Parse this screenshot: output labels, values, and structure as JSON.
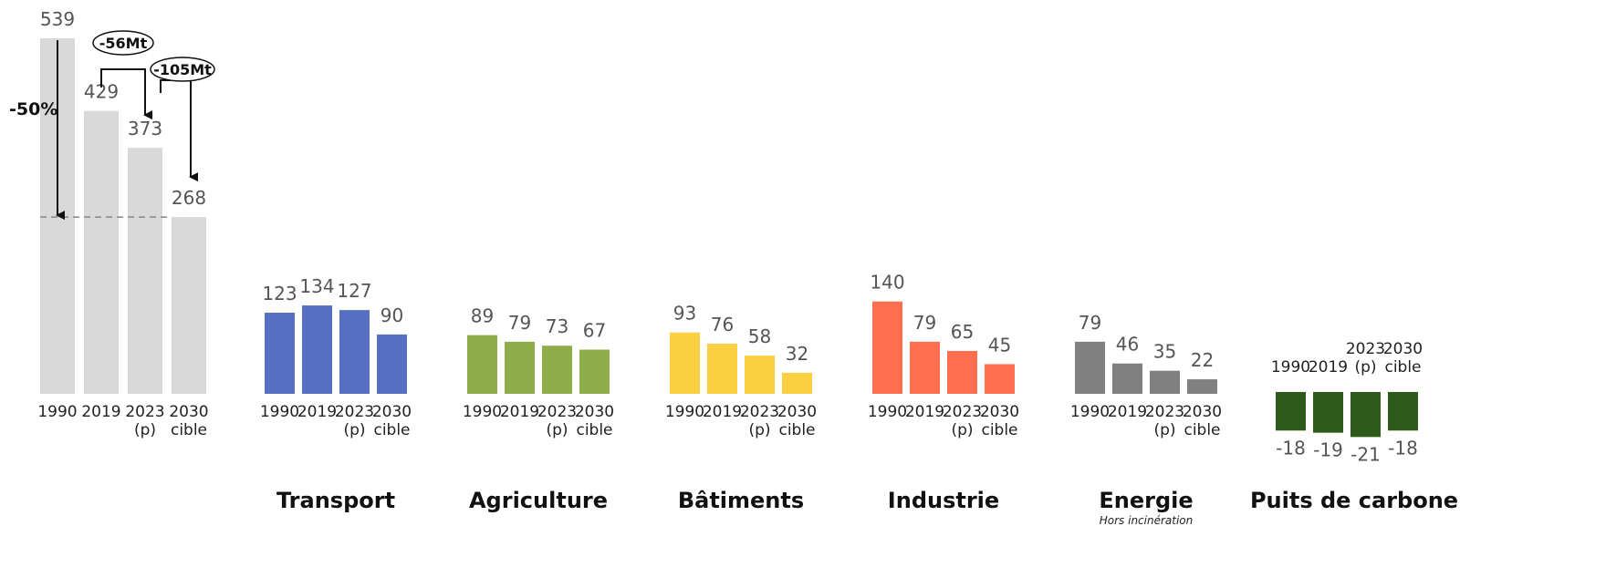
{
  "colors": {
    "total": "#d9d9d9",
    "transport": "#5570c0",
    "agriculture": "#8fae4b",
    "batiments": "#fdd044",
    "industrie": "#ff6f4f",
    "energie": "#808080",
    "puits": "#2d5a1b",
    "text": "#555555",
    "ann": "#111111"
  },
  "chart_data": [
    {
      "type": "bar",
      "id": "total",
      "title": "",
      "categories": [
        "1990",
        "2019",
        "2023\n(p)",
        "2030\ncible"
      ],
      "values": [
        539,
        429,
        373,
        268
      ],
      "annotations": {
        "reduction_pct": "-50%",
        "delta_2019_2023": "-56Mt",
        "delta_2019_2030": "-105Mt"
      }
    },
    {
      "type": "bar",
      "id": "transport",
      "title": "Transport",
      "categories": [
        "1990",
        "2019",
        "2023\n(p)",
        "2030\ncible"
      ],
      "values": [
        123,
        134,
        127,
        90
      ]
    },
    {
      "type": "bar",
      "id": "agriculture",
      "title": "Agriculture",
      "categories": [
        "1990",
        "2019",
        "2023\n(p)",
        "2030\ncible"
      ],
      "values": [
        89,
        79,
        73,
        67
      ]
    },
    {
      "type": "bar",
      "id": "batiments",
      "title": "Bâtiments",
      "categories": [
        "1990",
        "2019",
        "2023\n(p)",
        "2030\ncible"
      ],
      "values": [
        93,
        76,
        58,
        32
      ]
    },
    {
      "type": "bar",
      "id": "industrie",
      "title": "Industrie",
      "categories": [
        "1990",
        "2019",
        "2023\n(p)",
        "2030\ncible"
      ],
      "values": [
        140,
        79,
        65,
        45
      ]
    },
    {
      "type": "bar",
      "id": "energie",
      "title": "Energie",
      "subtitle": "Hors incinération",
      "categories": [
        "1990",
        "2019",
        "2023\n(p)",
        "2030\ncible"
      ],
      "values": [
        79,
        46,
        35,
        22
      ]
    },
    {
      "type": "bar",
      "id": "puits",
      "title": "Puits de carbone",
      "categories": [
        "1990",
        "2019",
        "2023\n(p)",
        "2030\ncible"
      ],
      "values": [
        -18,
        -19,
        -21,
        -18
      ]
    }
  ]
}
